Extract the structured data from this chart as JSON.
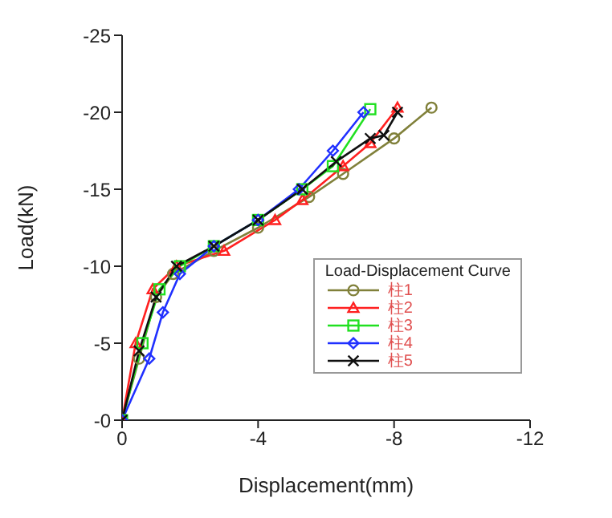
{
  "chart_data": {
    "type": "line",
    "xlabel": "Displacement(mm)",
    "ylabel": "Load(kN)",
    "legend_title": "Load-Displacement Curve",
    "legend": "bottom right",
    "grid": false,
    "xlim": [
      0,
      -12
    ],
    "xticks": [
      0,
      -4,
      -8,
      -12
    ],
    "ylim": [
      0,
      -25
    ],
    "yticks": [
      {
        "value": 0,
        "label": "-0"
      },
      -5,
      -10,
      -15,
      -20,
      -25
    ],
    "series": [
      {
        "name": "柱1",
        "color": "#80803a",
        "marker": "circle",
        "x": [
          0,
          -0.5,
          -1,
          -1.5,
          -2.7,
          -4,
          -5.5,
          -6.5,
          -8,
          -9.1
        ],
        "values": [
          0,
          -4,
          -8,
          -9.5,
          -11,
          -12.5,
          -14.5,
          -16,
          -18.3,
          -20.3
        ]
      },
      {
        "name": "柱2",
        "color": "#ff2020",
        "marker": "triangle",
        "x": [
          0,
          -0.4,
          -0.9,
          -1.6,
          -3,
          -4.5,
          -5.3,
          -6.5,
          -7.3,
          -8.1
        ],
        "values": [
          0,
          -5,
          -8.5,
          -10,
          -11,
          -13,
          -14.3,
          -16.5,
          -18,
          -20.3
        ]
      },
      {
        "name": "柱3",
        "color": "#20e020",
        "marker": "square",
        "x": [
          0,
          -0.6,
          -1.1,
          -1.7,
          -2.7,
          -4,
          -5.3,
          -6.2,
          -7.3
        ],
        "values": [
          0,
          -5,
          -8.5,
          -10,
          -11.3,
          -13,
          -15,
          -16.5,
          -20.2
        ]
      },
      {
        "name": "柱4",
        "color": "#2030ff",
        "marker": "diamond",
        "x": [
          0,
          -0.8,
          -1.2,
          -1.7,
          -2.7,
          -4,
          -5.2,
          -6.2,
          -7.1
        ],
        "values": [
          0,
          -4,
          -7,
          -9.5,
          -11.3,
          -13,
          -15,
          -17.5,
          -20
        ]
      },
      {
        "name": "柱5",
        "color": "#101010",
        "marker": "cross",
        "x": [
          0,
          -0.5,
          -1,
          -1.6,
          -2.7,
          -4,
          -5.3,
          -6.3,
          -7.3,
          -7.7,
          -8.1
        ],
        "values": [
          0,
          -4.5,
          -8,
          -10,
          -11.3,
          -13,
          -15,
          -16.8,
          -18.3,
          -18.5,
          -20
        ]
      }
    ]
  }
}
